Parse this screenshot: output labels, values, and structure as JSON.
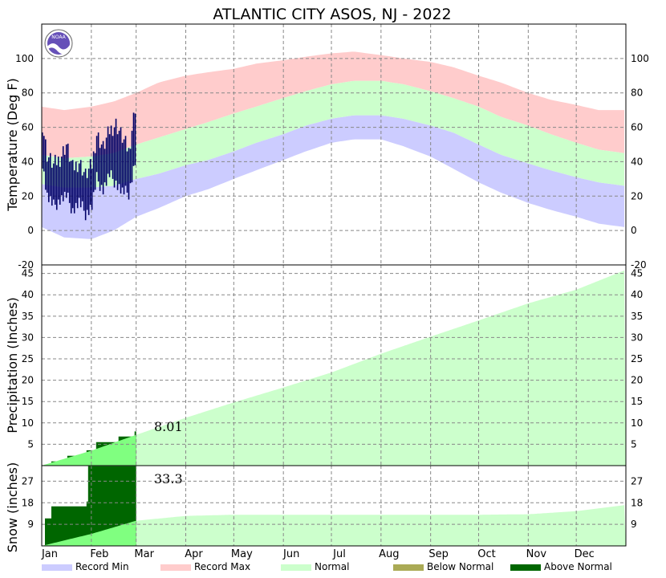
{
  "chart_data": {
    "type": "area",
    "title": "ATLANTIC CITY  ASOS, NJ - 2022",
    "logo_text": "NOAA",
    "months": [
      "Jan",
      "Feb",
      "Mar",
      "Apr",
      "May",
      "Jun",
      "Jul",
      "Aug",
      "Sep",
      "Oct",
      "Nov",
      "Dec"
    ],
    "colors": {
      "record_min": "#ccccff",
      "record_max": "#ffcccc",
      "normal": "#ccffcc",
      "below_normal": "#aaaa55",
      "above_normal": "#006600",
      "observed_temp": "#000066",
      "observed_precip_normal": "#80ff80"
    },
    "legend": [
      {
        "label": "Record Min",
        "color": "#ccccff"
      },
      {
        "label": "Record Max",
        "color": "#ffcccc"
      },
      {
        "label": "Normal",
        "color": "#ccffcc"
      },
      {
        "label": "Below Normal",
        "color": "#aaaa55"
      },
      {
        "label": "Above Normal",
        "color": "#006600"
      }
    ],
    "temperature": {
      "ylabel": "Temperature (Deg F)",
      "ylim": [
        -20,
        120
      ],
      "ticks": [
        -20,
        0,
        20,
        40,
        60,
        80,
        100
      ],
      "normal_high": [
        {
          "x": "Jan 1",
          "y": 44
        },
        {
          "x": "Jan 15",
          "y": 42
        },
        {
          "x": "Feb 1",
          "y": 43
        },
        {
          "x": "Feb 15",
          "y": 45
        },
        {
          "x": "Mar 1",
          "y": 50
        },
        {
          "x": "Mar 15",
          "y": 54
        },
        {
          "x": "Apr 1",
          "y": 59
        },
        {
          "x": "Apr 15",
          "y": 63
        },
        {
          "x": "May 1",
          "y": 68
        },
        {
          "x": "May 15",
          "y": 72
        },
        {
          "x": "Jun 1",
          "y": 77
        },
        {
          "x": "Jun 15",
          "y": 81
        },
        {
          "x": "Jul 1",
          "y": 85
        },
        {
          "x": "Jul 15",
          "y": 87
        },
        {
          "x": "Aug 1",
          "y": 87
        },
        {
          "x": "Aug 15",
          "y": 85
        },
        {
          "x": "Sep 1",
          "y": 81
        },
        {
          "x": "Sep 15",
          "y": 77
        },
        {
          "x": "Oct 1",
          "y": 72
        },
        {
          "x": "Oct 15",
          "y": 66
        },
        {
          "x": "Nov 1",
          "y": 61
        },
        {
          "x": "Nov 15",
          "y": 56
        },
        {
          "x": "Dec 1",
          "y": 51
        },
        {
          "x": "Dec 15",
          "y": 47
        },
        {
          "x": "Dec 31",
          "y": 45
        }
      ],
      "normal_low": [
        {
          "x": "Jan 1",
          "y": 27
        },
        {
          "x": "Jan 15",
          "y": 25
        },
        {
          "x": "Feb 1",
          "y": 25
        },
        {
          "x": "Feb 15",
          "y": 26
        },
        {
          "x": "Mar 1",
          "y": 30
        },
        {
          "x": "Mar 15",
          "y": 33
        },
        {
          "x": "Apr 1",
          "y": 38
        },
        {
          "x": "Apr 15",
          "y": 41
        },
        {
          "x": "May 1",
          "y": 46
        },
        {
          "x": "May 15",
          "y": 51
        },
        {
          "x": "Jun 1",
          "y": 56
        },
        {
          "x": "Jun 15",
          "y": 61
        },
        {
          "x": "Jul 1",
          "y": 65
        },
        {
          "x": "Jul 15",
          "y": 67
        },
        {
          "x": "Aug 1",
          "y": 67
        },
        {
          "x": "Aug 15",
          "y": 65
        },
        {
          "x": "Sep 1",
          "y": 61
        },
        {
          "x": "Sep 15",
          "y": 57
        },
        {
          "x": "Oct 1",
          "y": 50
        },
        {
          "x": "Oct 15",
          "y": 44
        },
        {
          "x": "Nov 1",
          "y": 39
        },
        {
          "x": "Nov 15",
          "y": 35
        },
        {
          "x": "Dec 1",
          "y": 31
        },
        {
          "x": "Dec 15",
          "y": 28
        },
        {
          "x": "Dec 31",
          "y": 26
        }
      ],
      "record_high": [
        {
          "x": "Jan 1",
          "y": 72
        },
        {
          "x": "Jan 15",
          "y": 70
        },
        {
          "x": "Feb 1",
          "y": 72
        },
        {
          "x": "Feb 15",
          "y": 75
        },
        {
          "x": "Mar 1",
          "y": 80
        },
        {
          "x": "Mar 15",
          "y": 86
        },
        {
          "x": "Apr 1",
          "y": 90
        },
        {
          "x": "Apr 15",
          "y": 92
        },
        {
          "x": "May 1",
          "y": 94
        },
        {
          "x": "May 15",
          "y": 97
        },
        {
          "x": "Jun 1",
          "y": 99
        },
        {
          "x": "Jun 15",
          "y": 101
        },
        {
          "x": "Jul 1",
          "y": 103
        },
        {
          "x": "Jul 15",
          "y": 104
        },
        {
          "x": "Aug 1",
          "y": 102
        },
        {
          "x": "Aug 15",
          "y": 100
        },
        {
          "x": "Sep 1",
          "y": 98
        },
        {
          "x": "Sep 15",
          "y": 95
        },
        {
          "x": "Oct 1",
          "y": 90
        },
        {
          "x": "Oct 15",
          "y": 86
        },
        {
          "x": "Nov 1",
          "y": 80
        },
        {
          "x": "Nov 15",
          "y": 76
        },
        {
          "x": "Dec 1",
          "y": 73
        },
        {
          "x": "Dec 15",
          "y": 70
        },
        {
          "x": "Dec 31",
          "y": 70
        }
      ],
      "record_low": [
        {
          "x": "Jan 1",
          "y": 2
        },
        {
          "x": "Jan 15",
          "y": -4
        },
        {
          "x": "Feb 1",
          "y": -5
        },
        {
          "x": "Feb 15",
          "y": 0
        },
        {
          "x": "Mar 1",
          "y": 8
        },
        {
          "x": "Mar 15",
          "y": 13
        },
        {
          "x": "Apr 1",
          "y": 20
        },
        {
          "x": "Apr 15",
          "y": 24
        },
        {
          "x": "May 1",
          "y": 30
        },
        {
          "x": "May 15",
          "y": 35
        },
        {
          "x": "Jun 1",
          "y": 41
        },
        {
          "x": "Jun 15",
          "y": 46
        },
        {
          "x": "Jul 1",
          "y": 51
        },
        {
          "x": "Jul 15",
          "y": 53
        },
        {
          "x": "Aug 1",
          "y": 53
        },
        {
          "x": "Aug 15",
          "y": 49
        },
        {
          "x": "Sep 1",
          "y": 43
        },
        {
          "x": "Sep 15",
          "y": 36
        },
        {
          "x": "Oct 1",
          "y": 28
        },
        {
          "x": "Oct 15",
          "y": 22
        },
        {
          "x": "Nov 1",
          "y": 16
        },
        {
          "x": "Nov 15",
          "y": 12
        },
        {
          "x": "Dec 1",
          "y": 8
        },
        {
          "x": "Dec 15",
          "y": 4
        },
        {
          "x": "Dec 31",
          "y": 2
        }
      ],
      "observed_2022": [
        {
          "x": "Jan 1",
          "high": 62,
          "low": 40
        },
        {
          "x": "Jan 4",
          "high": 44,
          "low": 20
        },
        {
          "x": "Jan 8",
          "high": 38,
          "low": 14
        },
        {
          "x": "Jan 12",
          "high": 42,
          "low": 18
        },
        {
          "x": "Jan 16",
          "high": 50,
          "low": 20
        },
        {
          "x": "Jan 20",
          "high": 36,
          "low": 12
        },
        {
          "x": "Jan 24",
          "high": 40,
          "low": 16
        },
        {
          "x": "Jan 28",
          "high": 32,
          "low": 10
        },
        {
          "x": "Feb 1",
          "high": 38,
          "low": 14
        },
        {
          "x": "Feb 4",
          "high": 56,
          "low": 30
        },
        {
          "x": "Feb 8",
          "high": 48,
          "low": 24
        },
        {
          "x": "Feb 12",
          "high": 58,
          "low": 32
        },
        {
          "x": "Feb 16",
          "high": 62,
          "low": 28
        },
        {
          "x": "Feb 20",
          "high": 54,
          "low": 22
        },
        {
          "x": "Feb 24",
          "high": 46,
          "low": 22
        },
        {
          "x": "Feb 28",
          "high": 72,
          "low": 40
        }
      ]
    },
    "precipitation": {
      "ylabel": "Precipitation (Inches)",
      "ticks": [
        5,
        10,
        15,
        20,
        25,
        30,
        35,
        40,
        45
      ],
      "ylim": [
        0,
        47
      ],
      "normal_cumulative": [
        {
          "x": "Jan 1",
          "y": 0
        },
        {
          "x": "Feb 1",
          "y": 3.5
        },
        {
          "x": "Mar 1",
          "y": 7.2
        },
        {
          "x": "Apr 1",
          "y": 11.2
        },
        {
          "x": "May 1",
          "y": 14.8
        },
        {
          "x": "Jun 1",
          "y": 18.3
        },
        {
          "x": "Jul 1",
          "y": 21.8
        },
        {
          "x": "Aug 1",
          "y": 26.2
        },
        {
          "x": "Sep 1",
          "y": 30.2
        },
        {
          "x": "Oct 1",
          "y": 34.0
        },
        {
          "x": "Nov 1",
          "y": 38.0
        },
        {
          "x": "Dec 1",
          "y": 41.2
        },
        {
          "x": "Dec 31",
          "y": 45.7
        }
      ],
      "observed_cumulative": [
        {
          "x": "Jan 1",
          "y": 0
        },
        {
          "x": "Jan 7",
          "y": 1.0
        },
        {
          "x": "Jan 17",
          "y": 2.3
        },
        {
          "x": "Jan 29",
          "y": 3.6
        },
        {
          "x": "Feb 4",
          "y": 5.5
        },
        {
          "x": "Feb 18",
          "y": 6.8
        },
        {
          "x": "Feb 28",
          "y": 8.01
        }
      ],
      "ytd_label": "8.01"
    },
    "snow": {
      "ylabel": "Snow (inches)",
      "ticks": [
        9,
        18,
        27
      ],
      "ylim": [
        0,
        33.5
      ],
      "normal_cumulative": [
        {
          "x": "Jan 1",
          "y": 0
        },
        {
          "x": "Feb 1",
          "y": 5.0
        },
        {
          "x": "Mar 1",
          "y": 10.5
        },
        {
          "x": "Apr 1",
          "y": 12.5
        },
        {
          "x": "May 1",
          "y": 13.0
        },
        {
          "x": "Jun 1",
          "y": 13.0
        },
        {
          "x": "Oct 1",
          "y": 13.0
        },
        {
          "x": "Nov 1",
          "y": 13.2
        },
        {
          "x": "Dec 1",
          "y": 14.5
        },
        {
          "x": "Dec 31",
          "y": 17.0
        }
      ],
      "observed_cumulative": [
        {
          "x": "Jan 1",
          "y": 0
        },
        {
          "x": "Jan 3",
          "y": 11.5
        },
        {
          "x": "Jan 7",
          "y": 16.5
        },
        {
          "x": "Jan 29",
          "y": 18.5
        },
        {
          "x": "Jan 30",
          "y": 33.3
        },
        {
          "x": "Feb 28",
          "y": 33.3
        }
      ],
      "ytd_label": "33.3"
    }
  }
}
